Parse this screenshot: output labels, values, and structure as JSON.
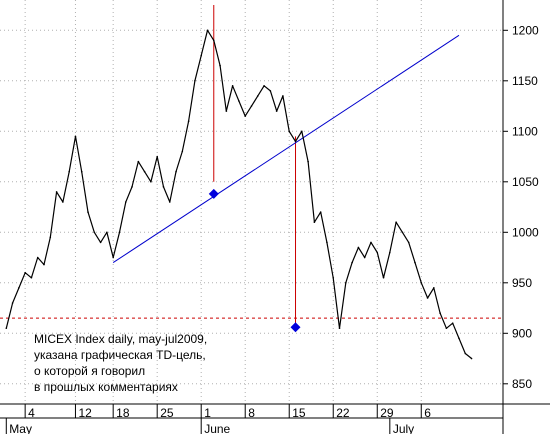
{
  "chart_data": {
    "type": "line",
    "title": "",
    "xlabel": "",
    "ylabel": "",
    "ylim": [
      830,
      1230
    ],
    "y_ticks": [
      850,
      900,
      950,
      1000,
      1050,
      1100,
      1150,
      1200
    ],
    "y_tick_labels": [
      "850",
      "900",
      "950",
      "1000",
      "1050",
      "1100",
      "1150",
      "1200"
    ],
    "x_ticks": [
      {
        "day": 4,
        "label": "4"
      },
      {
        "day": 12,
        "label": "12"
      },
      {
        "day": 18,
        "label": "18"
      },
      {
        "day": 25,
        "label": "25"
      },
      {
        "day": 32,
        "label": "1"
      },
      {
        "day": 39,
        "label": "8"
      },
      {
        "day": 46,
        "label": "15"
      },
      {
        "day": 53,
        "label": "22"
      },
      {
        "day": 60,
        "label": "29"
      },
      {
        "day": 67,
        "label": "6"
      }
    ],
    "month_labels": [
      {
        "day": 1,
        "label": "May"
      },
      {
        "day": 32,
        "label": "June"
      },
      {
        "day": 62,
        "label": "July"
      }
    ],
    "series": [
      {
        "values": [
          {
            "day": 1,
            "y": 905
          },
          {
            "day": 2,
            "y": 930
          },
          {
            "day": 3,
            "y": 945
          },
          {
            "day": 4,
            "y": 960
          },
          {
            "day": 5,
            "y": 955
          },
          {
            "day": 6,
            "y": 975
          },
          {
            "day": 7,
            "y": 968
          },
          {
            "day": 8,
            "y": 995
          },
          {
            "day": 9,
            "y": 1040
          },
          {
            "day": 10,
            "y": 1030
          },
          {
            "day": 11,
            "y": 1060
          },
          {
            "day": 12,
            "y": 1095
          },
          {
            "day": 13,
            "y": 1060
          },
          {
            "day": 14,
            "y": 1020
          },
          {
            "day": 15,
            "y": 1000
          },
          {
            "day": 16,
            "y": 990
          },
          {
            "day": 17,
            "y": 1000
          },
          {
            "day": 18,
            "y": 975
          },
          {
            "day": 19,
            "y": 1000
          },
          {
            "day": 20,
            "y": 1030
          },
          {
            "day": 21,
            "y": 1045
          },
          {
            "day": 22,
            "y": 1070
          },
          {
            "day": 23,
            "y": 1060
          },
          {
            "day": 24,
            "y": 1050
          },
          {
            "day": 25,
            "y": 1075
          },
          {
            "day": 26,
            "y": 1045
          },
          {
            "day": 27,
            "y": 1030
          },
          {
            "day": 28,
            "y": 1060
          },
          {
            "day": 29,
            "y": 1080
          },
          {
            "day": 30,
            "y": 1110
          },
          {
            "day": 31,
            "y": 1150
          },
          {
            "day": 32,
            "y": 1175
          },
          {
            "day": 33,
            "y": 1200
          },
          {
            "day": 34,
            "y": 1190
          },
          {
            "day": 35,
            "y": 1165
          },
          {
            "day": 36,
            "y": 1120
          },
          {
            "day": 37,
            "y": 1145
          },
          {
            "day": 38,
            "y": 1130
          },
          {
            "day": 39,
            "y": 1115
          },
          {
            "day": 40,
            "y": 1125
          },
          {
            "day": 41,
            "y": 1135
          },
          {
            "day": 42,
            "y": 1145
          },
          {
            "day": 43,
            "y": 1140
          },
          {
            "day": 44,
            "y": 1120
          },
          {
            "day": 45,
            "y": 1135
          },
          {
            "day": 46,
            "y": 1100
          },
          {
            "day": 47,
            "y": 1090
          },
          {
            "day": 48,
            "y": 1100
          },
          {
            "day": 49,
            "y": 1070
          },
          {
            "day": 50,
            "y": 1010
          },
          {
            "day": 51,
            "y": 1020
          },
          {
            "day": 52,
            "y": 990
          },
          {
            "day": 53,
            "y": 955
          },
          {
            "day": 54,
            "y": 905
          },
          {
            "day": 55,
            "y": 950
          },
          {
            "day": 56,
            "y": 970
          },
          {
            "day": 57,
            "y": 985
          },
          {
            "day": 58,
            "y": 975
          },
          {
            "day": 59,
            "y": 990
          },
          {
            "day": 60,
            "y": 980
          },
          {
            "day": 61,
            "y": 955
          },
          {
            "day": 62,
            "y": 980
          },
          {
            "day": 63,
            "y": 1010
          },
          {
            "day": 64,
            "y": 1000
          },
          {
            "day": 65,
            "y": 990
          },
          {
            "day": 66,
            "y": 970
          },
          {
            "day": 67,
            "y": 950
          },
          {
            "day": 68,
            "y": 935
          },
          {
            "day": 69,
            "y": 945
          },
          {
            "day": 70,
            "y": 920
          },
          {
            "day": 71,
            "y": 905
          },
          {
            "day": 72,
            "y": 910
          },
          {
            "day": 73,
            "y": 895
          },
          {
            "day": 74,
            "y": 880
          },
          {
            "day": 75,
            "y": 875
          }
        ]
      }
    ],
    "trendline": {
      "from": {
        "day": 18,
        "y": 970
      },
      "to": {
        "day": 73,
        "y": 1195
      }
    },
    "target_level": 915,
    "markers": [
      {
        "day": 34,
        "y": 1038
      },
      {
        "day": 47,
        "y": 906
      }
    ],
    "vertical_lines": [
      {
        "day": 34,
        "y_from": 1050,
        "y_to": 1225
      },
      {
        "day": 47,
        "y_from": 906,
        "y_to": 1095
      }
    ],
    "annotation": [
      "MICEX Index daily, may-jul2009,",
      "указана графическая TD-цель,",
      "о которой я говорил",
      "в прошлых комментариях"
    ],
    "colors": {
      "price": "#000000",
      "trendline": "#0000cc",
      "target": "#cc0000",
      "marker": "#0000dd",
      "axis": "#000000",
      "grid": "#b0b0b0"
    },
    "grid": true
  }
}
